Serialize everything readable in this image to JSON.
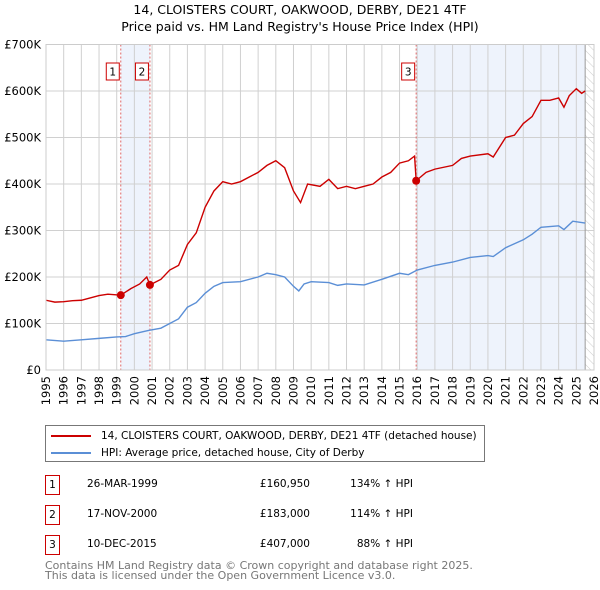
{
  "title": "14, CLOISTERS COURT, OAKWOOD, DERBY, DE21 4TF",
  "subtitle": "Price paid vs. HM Land Registry's House Price Index (HPI)",
  "chart_data": {
    "type": "line",
    "title": "14, CLOISTERS COURT, OAKWOOD, DERBY, DE21 4TF",
    "subtitle": "Price paid vs. HM Land Registry's House Price Index (HPI)",
    "xlim": [
      1995,
      2026
    ],
    "ylim": [
      0,
      700000
    ],
    "x_ticks": [
      "1995",
      "1996",
      "1997",
      "1998",
      "1999",
      "2000",
      "2001",
      "2002",
      "2003",
      "2004",
      "2005",
      "2006",
      "2007",
      "2008",
      "2009",
      "2010",
      "2011",
      "2012",
      "2013",
      "2014",
      "2015",
      "2016",
      "2017",
      "2018",
      "2019",
      "2020",
      "2021",
      "2022",
      "2023",
      "2024",
      "2025",
      "2026"
    ],
    "y_ticks": [
      {
        "v": 0,
        "label": "£0"
      },
      {
        "v": 100000,
        "label": "£100K"
      },
      {
        "v": 200000,
        "label": "£200K"
      },
      {
        "v": 300000,
        "label": "£300K"
      },
      {
        "v": 400000,
        "label": "£400K"
      },
      {
        "v": 500000,
        "label": "£500K"
      },
      {
        "v": 600000,
        "label": "£600K"
      },
      {
        "v": 700000,
        "label": "£700K"
      }
    ],
    "grid": true,
    "series": [
      {
        "name": "14, CLOISTERS COURT, OAKWOOD, DERBY, DE21 4TF (detached house)",
        "color": "#cc0000",
        "x": [
          1995,
          1995.5,
          1996,
          1996.5,
          1997,
          1997.5,
          1998,
          1998.5,
          1999.23,
          1999.8,
          2000.3,
          2000.7,
          2000.88,
          2001.5,
          2002,
          2002.5,
          2003,
          2003.5,
          2004,
          2004.5,
          2005,
          2005.5,
          2006,
          2006.5,
          2007,
          2007.5,
          2008,
          2008.5,
          2009,
          2009.4,
          2009.8,
          2010.5,
          2011,
          2011.5,
          2012,
          2012.5,
          2013,
          2013.5,
          2014,
          2014.5,
          2015,
          2015.5,
          2015.85,
          2015.94,
          2016.5,
          2017,
          2018,
          2018.5,
          2019,
          2020,
          2020.3,
          2021,
          2021.5,
          2022,
          2022.5,
          2023,
          2023.5,
          2024,
          2024.3,
          2024.6,
          2025,
          2025.3,
          2025.5
        ],
        "y": [
          150000,
          146000,
          147000,
          149000,
          150000,
          155000,
          160000,
          163000,
          160950,
          175000,
          185000,
          200000,
          183000,
          195000,
          215000,
          225000,
          270000,
          295000,
          350000,
          385000,
          405000,
          400000,
          405000,
          415000,
          425000,
          440000,
          450000,
          435000,
          385000,
          360000,
          400000,
          395000,
          410000,
          390000,
          395000,
          390000,
          395000,
          400000,
          415000,
          425000,
          445000,
          450000,
          460000,
          407000,
          425000,
          432000,
          440000,
          455000,
          460000,
          465000,
          458000,
          500000,
          505000,
          530000,
          545000,
          580000,
          580000,
          585000,
          565000,
          590000,
          605000,
          595000,
          600000
        ]
      },
      {
        "name": "HPI: Average price, detached house, City of Derby",
        "color": "#5b8fd6",
        "x": [
          1995,
          1996,
          1997,
          1998,
          1999,
          1999.5,
          2000,
          2000.8,
          2001.5,
          2002,
          2002.5,
          2003,
          2003.5,
          2004,
          2004.5,
          2005,
          2006,
          2007,
          2007.5,
          2008,
          2008.5,
          2009,
          2009.3,
          2009.6,
          2010,
          2011,
          2011.5,
          2012,
          2013,
          2014,
          2015,
          2015.5,
          2016,
          2017,
          2018,
          2019,
          2020,
          2020.3,
          2021,
          2022,
          2022.5,
          2023,
          2024,
          2024.3,
          2024.8,
          2025.5
        ],
        "y": [
          65000,
          62000,
          65000,
          68000,
          71000,
          72000,
          78000,
          85000,
          90000,
          100000,
          110000,
          135000,
          145000,
          165000,
          180000,
          188000,
          190000,
          200000,
          208000,
          205000,
          200000,
          180000,
          170000,
          185000,
          190000,
          188000,
          182000,
          185000,
          183000,
          195000,
          208000,
          205000,
          215000,
          225000,
          232000,
          242000,
          246000,
          244000,
          263000,
          280000,
          292000,
          307000,
          310000,
          302000,
          320000,
          316000
        ]
      }
    ],
    "shaded_ranges": [
      [
        1999.23,
        2000.88
      ],
      [
        2015.94,
        2025.5
      ]
    ],
    "hatched_after": 2025.5,
    "annotations": [
      {
        "label": "1",
        "x": 1999.23,
        "y": 160950
      },
      {
        "label": "2",
        "x": 2000.88,
        "y": 183000
      },
      {
        "label": "3",
        "x": 2015.94,
        "y": 407000
      }
    ],
    "legend_position": "below"
  },
  "legend": [
    {
      "label": "14, CLOISTERS COURT, OAKWOOD, DERBY, DE21 4TF (detached house)",
      "color": "#cc0000"
    },
    {
      "label": "HPI: Average price, detached house, City of Derby",
      "color": "#5b8fd6"
    }
  ],
  "transactions": [
    {
      "num": "1",
      "date": "26-MAR-1999",
      "price": "£160,950",
      "hpi": "134% ↑ HPI"
    },
    {
      "num": "2",
      "date": "17-NOV-2000",
      "price": "£183,000",
      "hpi": "114% ↑ HPI"
    },
    {
      "num": "3",
      "date": "10-DEC-2015",
      "price": "£407,000",
      "hpi": "88% ↑ HPI"
    }
  ],
  "footer": [
    "Contains HM Land Registry data © Crown copyright and database right 2025.",
    "This data is licensed under the Open Government Licence v3.0."
  ]
}
